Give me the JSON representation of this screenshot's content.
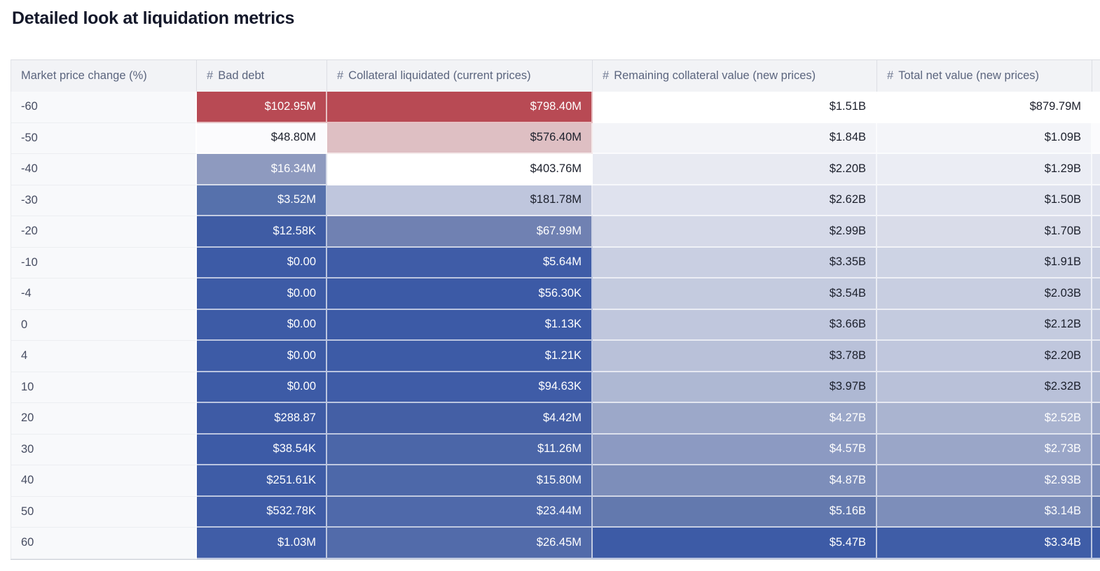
{
  "page": {
    "title": "Detailed look at liquidation metrics",
    "background": "#ffffff"
  },
  "palette": {
    "heat_red": "#b84a54",
    "heat_pink": "#debfc3",
    "heat_blue_dark": "#3d5ba6",
    "header_bg": "#f2f3f6",
    "header_text": "#5b657e",
    "row_label_bg": "#f8f9fb",
    "dark_text": "#1c202c",
    "light_text": "#ffffff"
  },
  "table": {
    "hash_symbol": "#",
    "columns": [
      {
        "key": "market-price-change",
        "label": "Market price change (%)",
        "hash": false
      },
      {
        "key": "bad-debt",
        "label": "Bad debt",
        "hash": true
      },
      {
        "key": "collateral-liquidated",
        "label": "Collateral liquidated (current prices)",
        "hash": true
      },
      {
        "key": "remaining-collateral",
        "label": "Remaining collateral value (new prices)",
        "hash": true
      },
      {
        "key": "total-net-value",
        "label": "Total net value (new prices)",
        "hash": true
      }
    ],
    "rows": [
      {
        "label": "-60",
        "sliver": "#ffffff",
        "cells": [
          {
            "v": "$102.95M",
            "bg": "#b84a54",
            "fg": "#ffffff"
          },
          {
            "v": "$798.40M",
            "bg": "#b84a54",
            "fg": "#ffffff"
          },
          {
            "v": "$1.51B",
            "bg": "#ffffff",
            "fg": "#1c202c"
          },
          {
            "v": "$879.79M",
            "bg": "#ffffff",
            "fg": "#1c202c"
          }
        ]
      },
      {
        "label": "-50",
        "sliver": "#fbfbfd",
        "cells": [
          {
            "v": "$48.80M",
            "bg": "#fbfbfd",
            "fg": "#1c202c"
          },
          {
            "v": "$576.40M",
            "bg": "#debfc3",
            "fg": "#1c202c"
          },
          {
            "v": "$1.84B",
            "bg": "#f3f4f8",
            "fg": "#1c202c"
          },
          {
            "v": "$1.09B",
            "bg": "#f4f5f9",
            "fg": "#1c202c"
          }
        ]
      },
      {
        "label": "-40",
        "sliver": "#e9ebf3",
        "cells": [
          {
            "v": "$16.34M",
            "bg": "#8e9abf",
            "fg": "#ffffff"
          },
          {
            "v": "$403.76M",
            "bg": "#ffffff",
            "fg": "#1c202c"
          },
          {
            "v": "$2.20B",
            "bg": "#e8eaf2",
            "fg": "#1c202c"
          },
          {
            "v": "$1.29B",
            "bg": "#ebedf4",
            "fg": "#1c202c"
          }
        ]
      },
      {
        "label": "-30",
        "sliver": "#dfe2ee",
        "cells": [
          {
            "v": "$3.52M",
            "bg": "#5671ac",
            "fg": "#ffffff"
          },
          {
            "v": "$181.78M",
            "bg": "#bfc6dd",
            "fg": "#1c202c"
          },
          {
            "v": "$2.62B",
            "bg": "#dfe2ee",
            "fg": "#1c202c"
          },
          {
            "v": "$1.50B",
            "bg": "#e1e4ef",
            "fg": "#1c202c"
          }
        ]
      },
      {
        "label": "-20",
        "sliver": "#d5d9e8",
        "cells": [
          {
            "v": "$12.58K",
            "bg": "#3f5ca4",
            "fg": "#ffffff"
          },
          {
            "v": "$67.99M",
            "bg": "#7081b2",
            "fg": "#ffffff"
          },
          {
            "v": "$2.99B",
            "bg": "#d5d9e8",
            "fg": "#1c202c"
          },
          {
            "v": "$1.70B",
            "bg": "#d9dce9",
            "fg": "#1c202c"
          }
        ]
      },
      {
        "label": "-10",
        "sliver": "#c9cfe2",
        "cells": [
          {
            "v": "$0.00",
            "bg": "#3d5ba6",
            "fg": "#ffffff"
          },
          {
            "v": "$5.64M",
            "bg": "#3f5ca7",
            "fg": "#ffffff"
          },
          {
            "v": "$3.35B",
            "bg": "#c9cfe2",
            "fg": "#1c202c"
          },
          {
            "v": "$1.91B",
            "bg": "#cdd3e4",
            "fg": "#1c202c"
          }
        ]
      },
      {
        "label": "-4",
        "sliver": "#c4cbdf",
        "cells": [
          {
            "v": "$0.00",
            "bg": "#3d5ba6",
            "fg": "#ffffff"
          },
          {
            "v": "$56.30K",
            "bg": "#3c5aa6",
            "fg": "#ffffff"
          },
          {
            "v": "$3.54B",
            "bg": "#c4cbdf",
            "fg": "#1c202c"
          },
          {
            "v": "$2.03B",
            "bg": "#c8cee1",
            "fg": "#1c202c"
          }
        ]
      },
      {
        "label": "0",
        "sliver": "#c0c7dd",
        "cells": [
          {
            "v": "$0.00",
            "bg": "#3d5ba6",
            "fg": "#ffffff"
          },
          {
            "v": "$1.13K",
            "bg": "#3c5aa6",
            "fg": "#ffffff"
          },
          {
            "v": "$3.66B",
            "bg": "#c0c7dd",
            "fg": "#1c202c"
          },
          {
            "v": "$2.12B",
            "bg": "#c4cbdf",
            "fg": "#1c202c"
          }
        ]
      },
      {
        "label": "4",
        "sliver": "#b9c1d9",
        "cells": [
          {
            "v": "$0.00",
            "bg": "#3d5ba6",
            "fg": "#ffffff"
          },
          {
            "v": "$1.21K",
            "bg": "#3d5ba6",
            "fg": "#ffffff"
          },
          {
            "v": "$3.78B",
            "bg": "#b9c1d9",
            "fg": "#1c202c"
          },
          {
            "v": "$2.20B",
            "bg": "#c0c7dd",
            "fg": "#1c202c"
          }
        ]
      },
      {
        "label": "10",
        "sliver": "#aeb8d3",
        "cells": [
          {
            "v": "$0.00",
            "bg": "#3d5ba6",
            "fg": "#ffffff"
          },
          {
            "v": "$94.63K",
            "bg": "#3f5ca7",
            "fg": "#ffffff"
          },
          {
            "v": "$3.97B",
            "bg": "#aeb8d3",
            "fg": "#1c202c"
          },
          {
            "v": "$2.32B",
            "bg": "#b9c1d9",
            "fg": "#1c202c"
          }
        ]
      },
      {
        "label": "20",
        "sliver": "#9ca8c9",
        "cells": [
          {
            "v": "$288.87",
            "bg": "#3e5ba5",
            "fg": "#ffffff"
          },
          {
            "v": "$4.42M",
            "bg": "#445fa5",
            "fg": "#ffffff"
          },
          {
            "v": "$4.27B",
            "bg": "#9ca8c9",
            "fg": "#ffffff"
          },
          {
            "v": "$2.52B",
            "bg": "#aab4d0",
            "fg": "#ffffff"
          }
        ]
      },
      {
        "label": "30",
        "sliver": "#8c9ac2",
        "cells": [
          {
            "v": "$38.54K",
            "bg": "#3d5ba6",
            "fg": "#ffffff"
          },
          {
            "v": "$11.26M",
            "bg": "#4b66a8",
            "fg": "#ffffff"
          },
          {
            "v": "$4.57B",
            "bg": "#8c9ac2",
            "fg": "#ffffff"
          },
          {
            "v": "$2.73B",
            "bg": "#9aa6c8",
            "fg": "#ffffff"
          }
        ]
      },
      {
        "label": "40",
        "sliver": "#7d8eba",
        "cells": [
          {
            "v": "$251.61K",
            "bg": "#3e5ca6",
            "fg": "#ffffff"
          },
          {
            "v": "$15.80M",
            "bg": "#4d68a9",
            "fg": "#ffffff"
          },
          {
            "v": "$4.87B",
            "bg": "#7d8eba",
            "fg": "#ffffff"
          },
          {
            "v": "$2.93B",
            "bg": "#8c9ac2",
            "fg": "#ffffff"
          }
        ]
      },
      {
        "label": "50",
        "sliver": "#6379ae",
        "cells": [
          {
            "v": "$532.78K",
            "bg": "#3f5ca6",
            "fg": "#ffffff"
          },
          {
            "v": "$23.44M",
            "bg": "#4f69aa",
            "fg": "#ffffff"
          },
          {
            "v": "$5.16B",
            "bg": "#6379ae",
            "fg": "#ffffff"
          },
          {
            "v": "$3.14B",
            "bg": "#7d8eba",
            "fg": "#ffffff"
          }
        ]
      },
      {
        "label": "60",
        "sliver": "#3d5ba6",
        "cells": [
          {
            "v": "$1.03M",
            "bg": "#405da7",
            "fg": "#ffffff"
          },
          {
            "v": "$26.45M",
            "bg": "#526baa",
            "fg": "#ffffff"
          },
          {
            "v": "$5.47B",
            "bg": "#3d5ba6",
            "fg": "#ffffff"
          },
          {
            "v": "$3.34B",
            "bg": "#3f5da7",
            "fg": "#ffffff"
          }
        ]
      }
    ]
  },
  "chart_data": {
    "type": "table",
    "title": "Detailed look at liquidation metrics",
    "xlabel": "Market price change (%)",
    "categories": [
      -60,
      -50,
      -40,
      -30,
      -20,
      -10,
      -4,
      0,
      4,
      10,
      20,
      30,
      40,
      50,
      60
    ],
    "series": [
      {
        "name": "Bad debt",
        "values": [
          "$102.95M",
          "$48.80M",
          "$16.34M",
          "$3.52M",
          "$12.58K",
          "$0.00",
          "$0.00",
          "$0.00",
          "$0.00",
          "$0.00",
          "$288.87",
          "$38.54K",
          "$251.61K",
          "$532.78K",
          "$1.03M"
        ]
      },
      {
        "name": "Collateral liquidated (current prices)",
        "values": [
          "$798.40M",
          "$576.40M",
          "$403.76M",
          "$181.78M",
          "$67.99M",
          "$5.64M",
          "$56.30K",
          "$1.13K",
          "$1.21K",
          "$94.63K",
          "$4.42M",
          "$11.26M",
          "$15.80M",
          "$23.44M",
          "$26.45M"
        ]
      },
      {
        "name": "Remaining collateral value (new prices)",
        "values": [
          "$1.51B",
          "$1.84B",
          "$2.20B",
          "$2.62B",
          "$2.99B",
          "$3.35B",
          "$3.54B",
          "$3.66B",
          "$3.78B",
          "$3.97B",
          "$4.27B",
          "$4.57B",
          "$4.87B",
          "$5.16B",
          "$5.47B"
        ]
      },
      {
        "name": "Total net value (new prices)",
        "values": [
          "$879.79M",
          "$1.09B",
          "$1.29B",
          "$1.50B",
          "$1.70B",
          "$1.91B",
          "$2.03B",
          "$2.12B",
          "$2.20B",
          "$2.32B",
          "$2.52B",
          "$2.73B",
          "$2.93B",
          "$3.14B",
          "$3.34B"
        ]
      }
    ],
    "layout_hints": {
      "grid": "white cell separators",
      "cell_shading": "per-column diverging heatmap, red = worst, dark blue = best/lowest",
      "legend": "none"
    }
  }
}
